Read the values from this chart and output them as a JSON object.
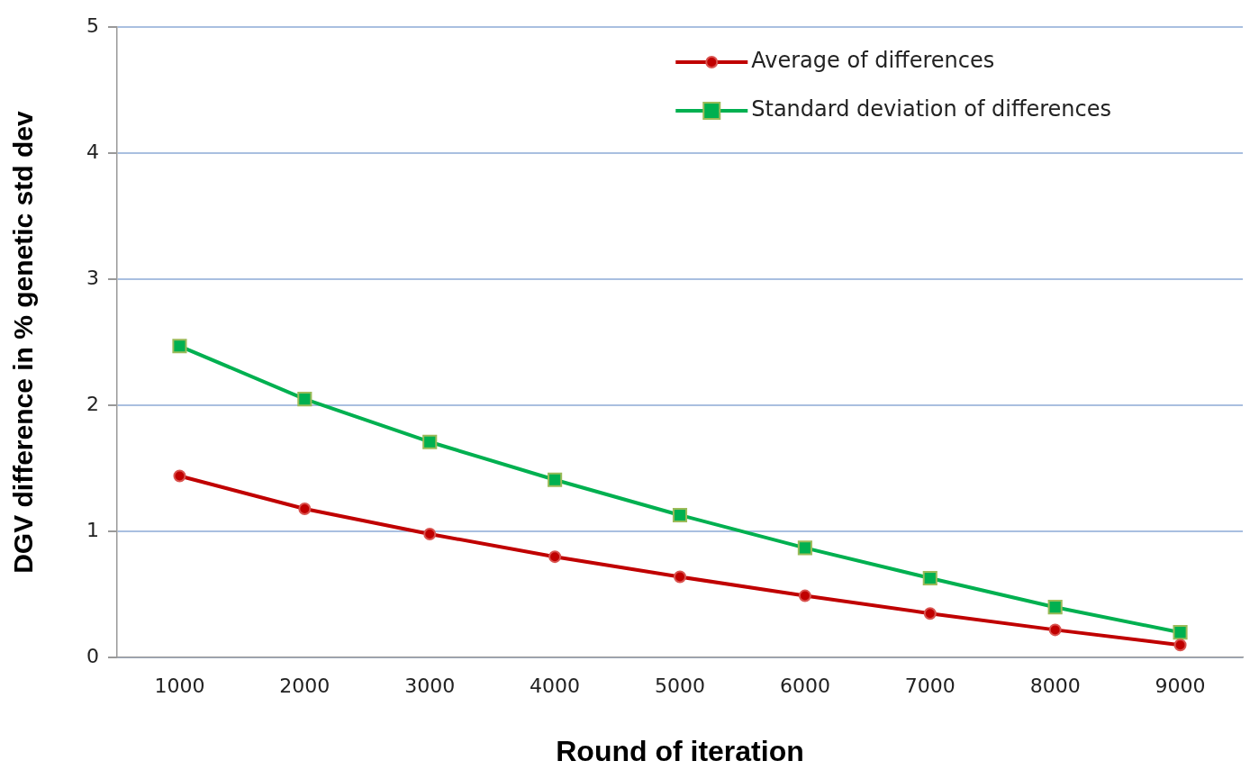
{
  "chart_data": {
    "type": "line",
    "xlabel": "Round of iteration",
    "ylabel": "DGV difference in % genetic std dev",
    "categories": [
      "1000",
      "2000",
      "3000",
      "4000",
      "5000",
      "6000",
      "7000",
      "8000",
      "9000"
    ],
    "series": [
      {
        "name": "Average of differences",
        "color": "#c00000",
        "marker": "circle",
        "values": [
          1.44,
          1.18,
          0.98,
          0.8,
          0.64,
          0.49,
          0.35,
          0.22,
          0.1
        ]
      },
      {
        "name": "Standard deviation of differences",
        "color": "#00b050",
        "marker": "square",
        "values": [
          2.47,
          2.05,
          1.71,
          1.41,
          1.13,
          0.87,
          0.63,
          0.4,
          0.2
        ]
      }
    ],
    "ylim": [
      0,
      5
    ],
    "yticks": [
      0,
      1,
      2,
      3,
      4,
      5
    ],
    "grid": "y",
    "legend": "top right",
    "line_style": "solid"
  }
}
